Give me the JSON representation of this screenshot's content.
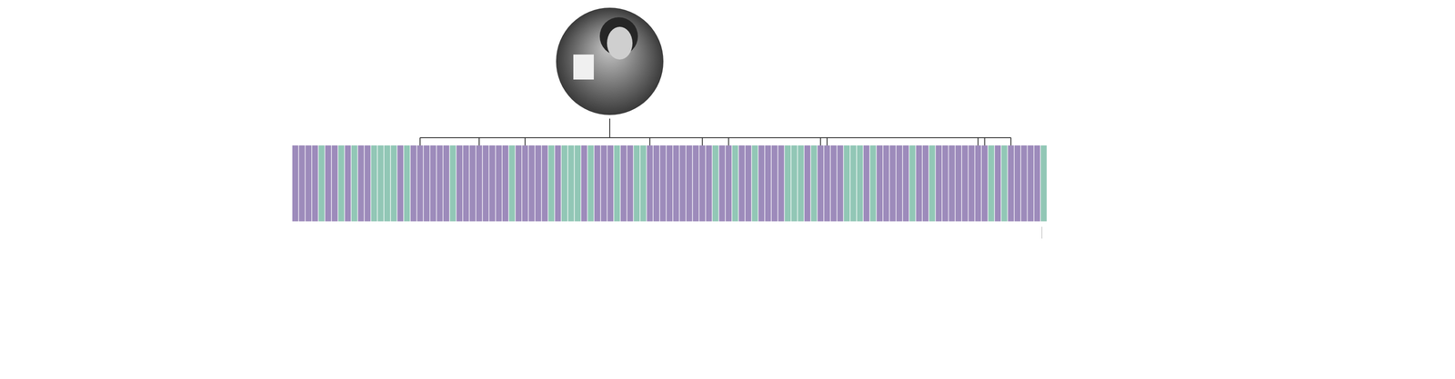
{
  "chart_data": {
    "type": "bar",
    "values": [
      1,
      1,
      1,
      1,
      1,
      1,
      1,
      1,
      1,
      1,
      1,
      1,
      1,
      1,
      1,
      1,
      1,
      1,
      1,
      1,
      1,
      1,
      1,
      1,
      1,
      1,
      1,
      1,
      1,
      1,
      1,
      1,
      1,
      1,
      1,
      1,
      1,
      1,
      1,
      1,
      1,
      1,
      1,
      1,
      1,
      1,
      1,
      1,
      1,
      1,
      1,
      1,
      1,
      1,
      1,
      1,
      1,
      1,
      1,
      1,
      1,
      1,
      1,
      1,
      1,
      1,
      1,
      1,
      1,
      1,
      1,
      1,
      1,
      1,
      1,
      1,
      1,
      1,
      1,
      1,
      1,
      1,
      1,
      1,
      1,
      1,
      1,
      1,
      1,
      1,
      1,
      1,
      1,
      1,
      1,
      1,
      1,
      1,
      1,
      1,
      1,
      1,
      1,
      1,
      1,
      1,
      1,
      1,
      1,
      1,
      1,
      1,
      1,
      1,
      1
    ],
    "categories": [
      null,
      null,
      null,
      null,
      null,
      null,
      null,
      null,
      null,
      null,
      null,
      null,
      null,
      null,
      null,
      null,
      null,
      null,
      null,
      null,
      null,
      null,
      null,
      null,
      null,
      null,
      null,
      null,
      null,
      null,
      null,
      null,
      null,
      null,
      null,
      null,
      null,
      null,
      null,
      null,
      null,
      null,
      null,
      null,
      null,
      null,
      null,
      null,
      null,
      null,
      null,
      null,
      null,
      null,
      null,
      null,
      null,
      null,
      null,
      null,
      null,
      null,
      null,
      null,
      null,
      null,
      null,
      null,
      null,
      null,
      null,
      null,
      null,
      null,
      null,
      null,
      null,
      null,
      null,
      null,
      null,
      null,
      null,
      null,
      null,
      null,
      null,
      null,
      null,
      null,
      null,
      null,
      null,
      null,
      null,
      null,
      null,
      null,
      null,
      null,
      null,
      null,
      null,
      null,
      null,
      null,
      null,
      null,
      null,
      null,
      null,
      null,
      null,
      null,
      null
    ],
    "colors": [
      "#9d8bbb",
      "#9d8bbb",
      "#9d8bbb",
      "#9d8bbb",
      "#92c7b6",
      "#9d8bbb",
      "#9d8bbb",
      "#92c7b6",
      "#9d8bbb",
      "#92c7b6",
      "#9d8bbb",
      "#9d8bbb",
      "#92c7b6",
      "#92c7b6",
      "#92c7b6",
      "#92c7b6",
      "#9d8bbb",
      "#92c7b6",
      "#9d8bbb",
      "#9d8bbb",
      "#9d8bbb",
      "#9d8bbb",
      "#9d8bbb",
      "#9d8bbb",
      "#92c7b6",
      "#9d8bbb",
      "#9d8bbb",
      "#9d8bbb",
      "#9d8bbb",
      "#9d8bbb",
      "#9d8bbb",
      "#9d8bbb",
      "#9d8bbb",
      "#92c7b6",
      "#9d8bbb",
      "#9d8bbb",
      "#9d8bbb",
      "#9d8bbb",
      "#9d8bbb",
      "#92c7b6",
      "#9d8bbb",
      "#92c7b6",
      "#92c7b6",
      "#92c7b6",
      "#9d8bbb",
      "#92c7b6",
      "#9d8bbb",
      "#9d8bbb",
      "#9d8bbb",
      "#92c7b6",
      "#9d8bbb",
      "#9d8bbb",
      "#92c7b6",
      "#92c7b6",
      "#9d8bbb",
      "#9d8bbb",
      "#9d8bbb",
      "#9d8bbb",
      "#9d8bbb",
      "#9d8bbb",
      "#9d8bbb",
      "#9d8bbb",
      "#9d8bbb",
      "#9d8bbb",
      "#92c7b6",
      "#9d8bbb",
      "#9d8bbb",
      "#92c7b6",
      "#9d8bbb",
      "#9d8bbb",
      "#92c7b6",
      "#9d8bbb",
      "#9d8bbb",
      "#9d8bbb",
      "#9d8bbb",
      "#92c7b6",
      "#92c7b6",
      "#92c7b6",
      "#9d8bbb",
      "#92c7b6",
      "#9d8bbb",
      "#9d8bbb",
      "#9d8bbb",
      "#9d8bbb",
      "#92c7b6",
      "#92c7b6",
      "#92c7b6",
      "#9d8bbb",
      "#92c7b6",
      "#9d8bbb",
      "#9d8bbb",
      "#9d8bbb",
      "#9d8bbb",
      "#9d8bbb",
      "#92c7b6",
      "#9d8bbb",
      "#9d8bbb",
      "#92c7b6",
      "#9d8bbb",
      "#9d8bbb",
      "#9d8bbb",
      "#9d8bbb",
      "#9d8bbb",
      "#9d8bbb",
      "#9d8bbb",
      "#9d8bbb",
      "#92c7b6",
      "#9d8bbb",
      "#92c7b6",
      "#9d8bbb",
      "#9d8bbb",
      "#9d8bbb",
      "#9d8bbb",
      "#9d8bbb",
      "#92c7b6"
    ],
    "marked": [
      19,
      28,
      35,
      54,
      62,
      66,
      80,
      81,
      104,
      105,
      109
    ],
    "ylim": [
      0,
      1
    ],
    "yticks": [],
    "grid": false,
    "tick_labels": false
  }
}
